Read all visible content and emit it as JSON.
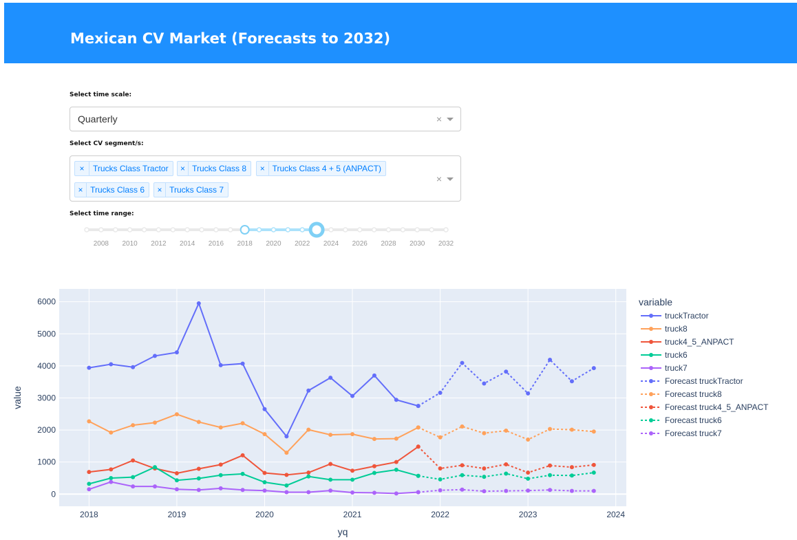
{
  "header": {
    "title": "Mexican CV Market (Forecasts to 2032)"
  },
  "controls": {
    "time_scale": {
      "label": "Select time scale:",
      "value": "Quarterly",
      "clear": "×"
    },
    "segments": {
      "label": "Select CV segment/s:",
      "tags": [
        "Trucks Class Tractor",
        "Trucks Class 8",
        "Trucks Class 4 + 5 (ANPACT)",
        "Trucks Class 6",
        "Trucks Class 7"
      ],
      "tag_remove": "×",
      "clear": "×"
    },
    "time_range": {
      "label": "Select time range:",
      "ticks": [
        "2008",
        "2010",
        "2012",
        "2014",
        "2016",
        "2018",
        "2020",
        "2022",
        "2024",
        "2026",
        "2028",
        "2030",
        "2032"
      ],
      "range_start": 2018,
      "range_end": 2023,
      "min": 2007,
      "max": 2032
    }
  },
  "chart_data": {
    "type": "line",
    "xlabel": "yq",
    "ylabel": "value",
    "legend_title": "variable",
    "xlim": [
      2017.66,
      2024.12
    ],
    "ylim": [
      -380,
      6400
    ],
    "xticks": [
      2018,
      2019,
      2020,
      2021,
      2022,
      2023,
      2024
    ],
    "yticks": [
      0,
      1000,
      2000,
      3000,
      4000,
      5000,
      6000
    ],
    "grid": true,
    "legend_position": "right",
    "x_actual": [
      2018.0,
      2018.25,
      2018.5,
      2018.75,
      2019.0,
      2019.25,
      2019.5,
      2019.75,
      2020.0,
      2020.25,
      2020.5,
      2020.75,
      2021.0,
      2021.25,
      2021.5,
      2021.75
    ],
    "x_forecast": [
      2021.75,
      2022.0,
      2022.25,
      2022.5,
      2022.75,
      2023.0,
      2023.25,
      2023.5,
      2023.75
    ],
    "series": [
      {
        "name": "truckTractor",
        "color": "#636efa",
        "dash": false,
        "values": [
          3940,
          4050,
          3960,
          4310,
          4420,
          5950,
          4020,
          4070,
          2650,
          1800,
          3230,
          3630,
          3060,
          3700,
          2940,
          2750
        ]
      },
      {
        "name": "truck8",
        "color": "#ffa15a",
        "dash": false,
        "values": [
          2270,
          1920,
          2150,
          2230,
          2490,
          2250,
          2080,
          2210,
          1870,
          1290,
          2010,
          1850,
          1870,
          1720,
          1730,
          2080
        ]
      },
      {
        "name": "truck4_5_ANPACT",
        "color": "#ef553b",
        "dash": false,
        "values": [
          690,
          770,
          1050,
          800,
          650,
          790,
          920,
          1210,
          660,
          600,
          670,
          940,
          730,
          870,
          1000,
          1480
        ]
      },
      {
        "name": "truck6",
        "color": "#00cc96",
        "dash": false,
        "values": [
          320,
          500,
          530,
          840,
          430,
          490,
          590,
          630,
          370,
          270,
          550,
          450,
          450,
          660,
          760,
          570
        ]
      },
      {
        "name": "truck7",
        "color": "#ab63fa",
        "dash": false,
        "values": [
          150,
          380,
          240,
          240,
          150,
          130,
          180,
          130,
          110,
          60,
          60,
          110,
          50,
          40,
          20,
          60
        ]
      },
      {
        "name": "Forecast truckTractor",
        "color": "#636efa",
        "dash": true,
        "values": [
          2750,
          3160,
          4090,
          3450,
          3820,
          3140,
          4190,
          3520,
          3930
        ]
      },
      {
        "name": "Forecast truck8",
        "color": "#ffa15a",
        "dash": true,
        "values": [
          2080,
          1770,
          2110,
          1900,
          1980,
          1700,
          2030,
          2010,
          1950
        ]
      },
      {
        "name": "Forecast truck4_5_ANPACT",
        "color": "#ef553b",
        "dash": true,
        "values": [
          1480,
          800,
          900,
          800,
          930,
          670,
          890,
          840,
          910
        ]
      },
      {
        "name": "Forecast truck6",
        "color": "#00cc96",
        "dash": true,
        "values": [
          570,
          460,
          590,
          540,
          640,
          480,
          590,
          580,
          670
        ]
      },
      {
        "name": "Forecast truck7",
        "color": "#ab63fa",
        "dash": true,
        "values": [
          60,
          120,
          140,
          90,
          100,
          110,
          130,
          100,
          100
        ]
      }
    ]
  }
}
